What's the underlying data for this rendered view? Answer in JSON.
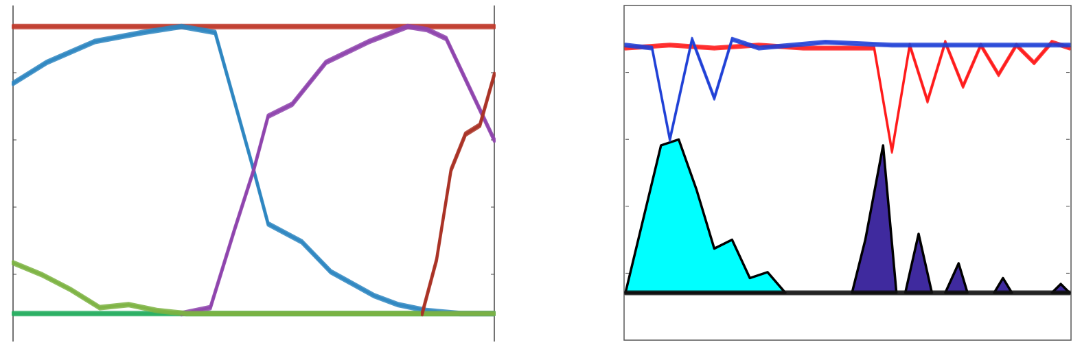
{
  "chart_data": [
    {
      "type": "line",
      "title": "",
      "xlabel": "",
      "ylabel": "",
      "grid": false,
      "legend": "none",
      "xlim": [
        0,
        10
      ],
      "ylim": [
        0,
        1
      ],
      "yticks_count": 5,
      "series": [
        {
          "color": "#c0392b",
          "x": [
            0,
            0.5,
            1,
            1.5,
            2,
            2.5,
            3,
            3.5,
            4,
            4.5,
            5,
            5.5,
            6,
            6.5,
            7,
            7.5,
            8,
            8.5,
            9,
            9.5,
            10
          ],
          "y": [
            0.98,
            0.98,
            0.98,
            0.98,
            0.98,
            0.98,
            0.98,
            0.98,
            0.98,
            0.98,
            0.98,
            0.98,
            0.98,
            0.98,
            0.98,
            0.98,
            0.98,
            0.98,
            0.98,
            0.98,
            0.98
          ]
        },
        {
          "color": "#27ae60",
          "x": [
            0,
            0.5,
            1,
            1.5,
            2,
            2.5,
            3,
            3.5,
            4,
            4.5,
            5,
            5.5,
            6,
            6.5,
            7,
            7.5,
            8,
            8.5,
            9,
            9.5,
            10
          ],
          "y": [
            0.02,
            0.02,
            0.02,
            0.02,
            0.02,
            0.02,
            0.02,
            0.02,
            0.02,
            0.02,
            0.02,
            0.02,
            0.02,
            0.02,
            0.02,
            0.02,
            0.02,
            0.02,
            0.02,
            0.02,
            0.02
          ]
        },
        {
          "color": "#2e86c1",
          "x": [
            0,
            0.7,
            1.7,
            2.7,
            3.5,
            4.2,
            5.0,
            5.3,
            6.0,
            6.6,
            7.5,
            8.0,
            8.6,
            9.3,
            10
          ],
          "y": [
            0.79,
            0.86,
            0.93,
            0.96,
            0.98,
            0.96,
            0.5,
            0.32,
            0.26,
            0.16,
            0.08,
            0.05,
            0.03,
            0.02,
            0.02
          ]
        },
        {
          "color": "#8e44ad",
          "x": [
            3.5,
            4.1,
            4.6,
            5.0,
            5.3,
            5.8,
            6.5,
            7.4,
            8.2,
            8.6,
            9.0,
            10
          ],
          "y": [
            0.02,
            0.04,
            0.3,
            0.5,
            0.68,
            0.72,
            0.86,
            0.93,
            0.98,
            0.97,
            0.94,
            0.6
          ]
        },
        {
          "color": "#7cb342",
          "x": [
            0,
            0.6,
            1.2,
            1.8,
            2.4,
            3.0,
            3.6,
            4.2,
            10
          ],
          "y": [
            0.19,
            0.15,
            0.1,
            0.04,
            0.05,
            0.03,
            0.02,
            0.02,
            0.02
          ]
        },
        {
          "color": "#a93226",
          "x": [
            8.5,
            8.8,
            9.1,
            9.4,
            9.7,
            10
          ],
          "y": [
            0.02,
            0.2,
            0.5,
            0.62,
            0.65,
            0.82
          ]
        }
      ]
    },
    {
      "type": "line",
      "title": "",
      "xlabel": "",
      "ylabel": "",
      "grid": false,
      "legend": "none",
      "xlim": [
        0,
        10
      ],
      "ylim": [
        0,
        1
      ],
      "yticks_count": 5,
      "series": [
        {
          "color": "#ff1a1a",
          "x": [
            0,
            1,
            2,
            3,
            4,
            5,
            5.6,
            6.0,
            6.4,
            6.8,
            7.2,
            7.6,
            8.0,
            8.4,
            8.8,
            9.2,
            9.6,
            10
          ],
          "y": [
            0.93,
            0.94,
            0.93,
            0.94,
            0.93,
            0.93,
            0.93,
            0.58,
            0.94,
            0.75,
            0.95,
            0.8,
            0.94,
            0.84,
            0.94,
            0.88,
            0.95,
            0.93
          ]
        },
        {
          "color": "#1f3fd6",
          "x": [
            0,
            0.6,
            1.0,
            1.5,
            2.0,
            2.4,
            3.0,
            4.5,
            6.0,
            10
          ],
          "y": [
            0.94,
            0.93,
            0.62,
            0.96,
            0.76,
            0.96,
            0.93,
            0.95,
            0.94,
            0.94
          ]
        },
        {
          "color": "#111111",
          "x": [
            0,
            2,
            4,
            6,
            8,
            10
          ],
          "y": [
            0.1,
            0.1,
            0.1,
            0.1,
            0.1,
            0.1
          ]
        }
      ],
      "filled_pulses": [
        {
          "color": "#00ffff",
          "x": [
            0,
            0.4,
            0.8,
            1.2,
            1.6,
            2.0,
            2.4,
            2.8,
            3.2,
            3.6
          ],
          "y": [
            0.1,
            0.35,
            0.6,
            0.62,
            0.45,
            0.25,
            0.28,
            0.15,
            0.17,
            0.1
          ]
        },
        {
          "color": "#3f2a9e",
          "x": [
            5.1,
            5.4,
            5.8,
            6.1
          ],
          "y": [
            0.1,
            0.28,
            0.6,
            0.1
          ]
        },
        {
          "color": "#3f2a9e",
          "x": [
            6.3,
            6.6,
            6.9
          ],
          "y": [
            0.1,
            0.3,
            0.1
          ]
        },
        {
          "color": "#3f2a9e",
          "x": [
            7.2,
            7.5,
            7.7
          ],
          "y": [
            0.1,
            0.2,
            0.1
          ]
        },
        {
          "color": "#3f2a9e",
          "x": [
            8.3,
            8.5,
            8.7
          ],
          "y": [
            0.1,
            0.15,
            0.1
          ]
        },
        {
          "color": "#3f2a9e",
          "x": [
            9.6,
            9.8,
            10.0
          ],
          "y": [
            0.1,
            0.13,
            0.1
          ]
        }
      ]
    }
  ]
}
